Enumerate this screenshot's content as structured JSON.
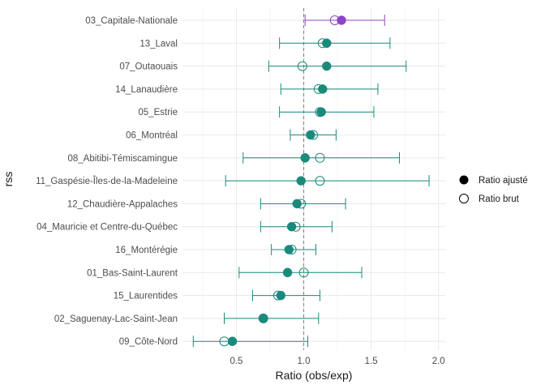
{
  "chart_data": {
    "type": "dot-errorbar",
    "xlabel": "Ratio (obs/exp)",
    "ylabel": "rss",
    "xlim": [
      0.1,
      2.05
    ],
    "x_ticks": [
      0.5,
      1.0,
      1.5,
      2.0
    ],
    "x_tick_labels": [
      "0.5",
      "1.0",
      "1.5",
      "2.0"
    ],
    "reference_line": 1.0,
    "grid": true,
    "legend_position": "right",
    "legend": {
      "adjusted_label": "Ratio ajusté",
      "raw_label": "Ratio brut"
    },
    "colors": {
      "highlight": "#8B45C8",
      "default": "#1A8A7C",
      "grid": "#ebebeb",
      "refline": "#7f7f7f"
    },
    "categories": [
      {
        "label": "03_Capitale-Nationale",
        "adjusted": 1.28,
        "raw": 1.23,
        "lower": 1.01,
        "upper": 1.6,
        "highlight": true
      },
      {
        "label": "13_Laval",
        "adjusted": 1.17,
        "raw": 1.14,
        "lower": 0.82,
        "upper": 1.64,
        "highlight": false
      },
      {
        "label": "07_Outaouais",
        "adjusted": 1.17,
        "raw": 0.99,
        "lower": 0.74,
        "upper": 1.76,
        "highlight": false
      },
      {
        "label": "14_Lanaudière",
        "adjusted": 1.14,
        "raw": 1.11,
        "lower": 0.83,
        "upper": 1.55,
        "highlight": false
      },
      {
        "label": "05_Estrie",
        "adjusted": 1.13,
        "raw": 1.12,
        "lower": 0.82,
        "upper": 1.52,
        "highlight": false
      },
      {
        "label": "06_Montréal",
        "adjusted": 1.05,
        "raw": 1.07,
        "lower": 0.9,
        "upper": 1.24,
        "highlight": false
      },
      {
        "label": "08_Abitibi-Témiscamingue",
        "adjusted": 1.01,
        "raw": 1.12,
        "lower": 0.55,
        "upper": 1.71,
        "highlight": false
      },
      {
        "label": "11_Gaspésie-Îles-de-la-Madeleine",
        "adjusted": 0.98,
        "raw": 1.12,
        "lower": 0.42,
        "upper": 1.93,
        "highlight": false
      },
      {
        "label": "12_Chaudière-Appalaches",
        "adjusted": 0.95,
        "raw": 0.98,
        "lower": 0.68,
        "upper": 1.31,
        "highlight": false
      },
      {
        "label": "04_Mauricie et Centre-du-Québec",
        "adjusted": 0.91,
        "raw": 0.94,
        "lower": 0.68,
        "upper": 1.21,
        "highlight": false
      },
      {
        "label": "16_Montérégie",
        "adjusted": 0.89,
        "raw": 0.91,
        "lower": 0.76,
        "upper": 1.09,
        "highlight": false
      },
      {
        "label": "01_Bas-Saint-Laurent",
        "adjusted": 0.88,
        "raw": 1.0,
        "lower": 0.52,
        "upper": 1.43,
        "highlight": false
      },
      {
        "label": "15_Laurentides",
        "adjusted": 0.83,
        "raw": 0.81,
        "lower": 0.62,
        "upper": 1.12,
        "highlight": false
      },
      {
        "label": "02_Saguenay-Lac-Saint-Jean",
        "adjusted": 0.7,
        "raw": 0.7,
        "lower": 0.41,
        "upper": 1.11,
        "highlight": false
      },
      {
        "label": "09_Côte-Nord",
        "adjusted": 0.47,
        "raw": 0.41,
        "lower": 0.18,
        "upper": 1.03,
        "highlight": false
      }
    ]
  }
}
